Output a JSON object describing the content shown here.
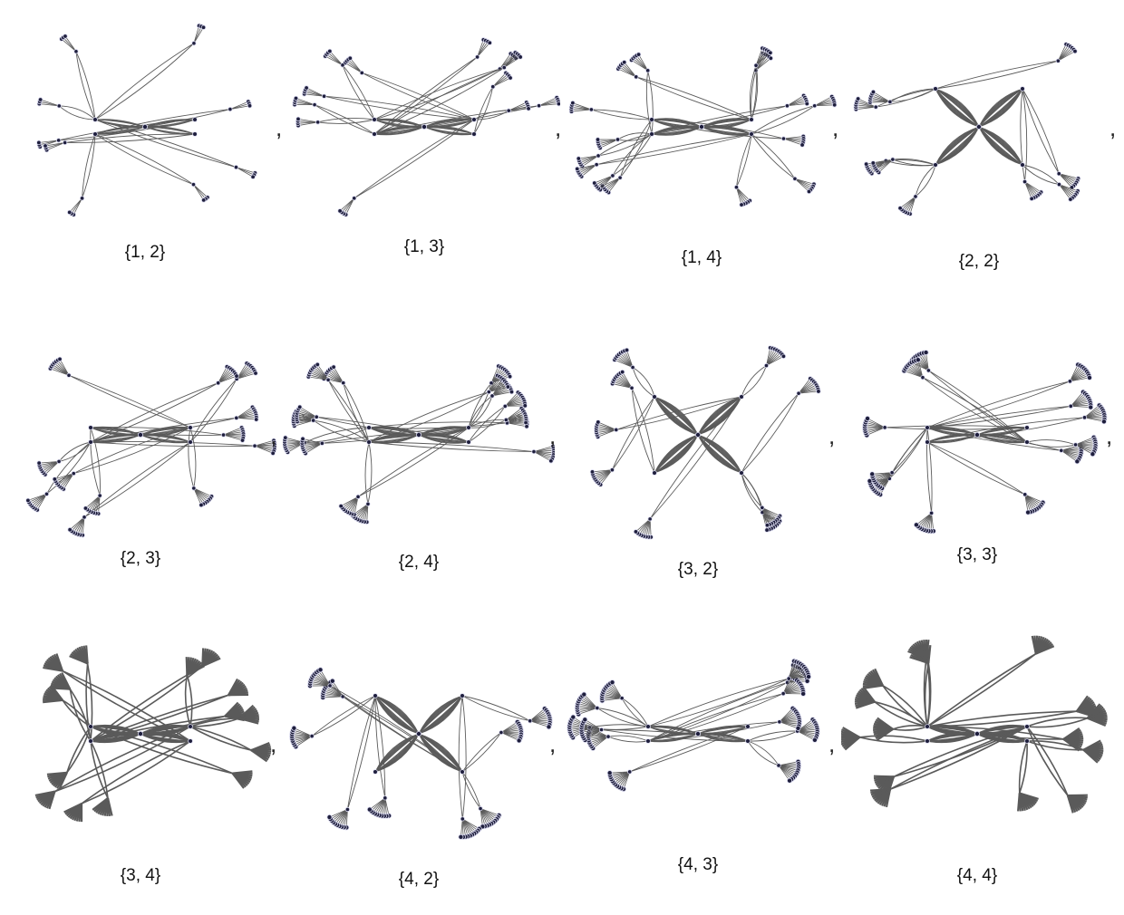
{
  "panels": [
    {
      "label": "{1, 2}",
      "density": 1,
      "fan": 3,
      "solid": false,
      "style": "sparse"
    },
    {
      "label": "{1, 3}",
      "density": 2,
      "fan": 4,
      "solid": false,
      "style": "sparse"
    },
    {
      "label": "{1, 4}",
      "density": 3,
      "fan": 5,
      "solid": false,
      "style": "sparse"
    },
    {
      "label": "{2, 2}",
      "density": 1,
      "fan": 6,
      "solid": false,
      "style": "bowtie"
    },
    {
      "label": "{2, 3}",
      "density": 2,
      "fan": 7,
      "solid": false,
      "style": "dense"
    },
    {
      "label": "{2, 4}",
      "density": 3,
      "fan": 8,
      "solid": false,
      "style": "dense"
    },
    {
      "label": "{3, 2}",
      "density": 1,
      "fan": 8,
      "solid": false,
      "style": "bowtie"
    },
    {
      "label": "{3, 3}",
      "density": 2,
      "fan": 9,
      "solid": false,
      "style": "dense"
    },
    {
      "label": "{3, 4}",
      "density": 3,
      "fan": 10,
      "solid": true,
      "style": "dense"
    },
    {
      "label": "{4, 2}",
      "density": 1,
      "fan": 10,
      "solid": false,
      "style": "bowtie"
    },
    {
      "label": "{4, 3}",
      "density": 2,
      "fan": 11,
      "solid": false,
      "style": "dense"
    },
    {
      "label": "{4, 4}",
      "density": 3,
      "fan": 12,
      "solid": true,
      "style": "dense"
    }
  ],
  "separator": ",",
  "colors": {
    "edge": "#5a5a5a",
    "node_fill": "#1e1e3c",
    "node_stroke": "#d8d8ee",
    "text": "#111111"
  }
}
